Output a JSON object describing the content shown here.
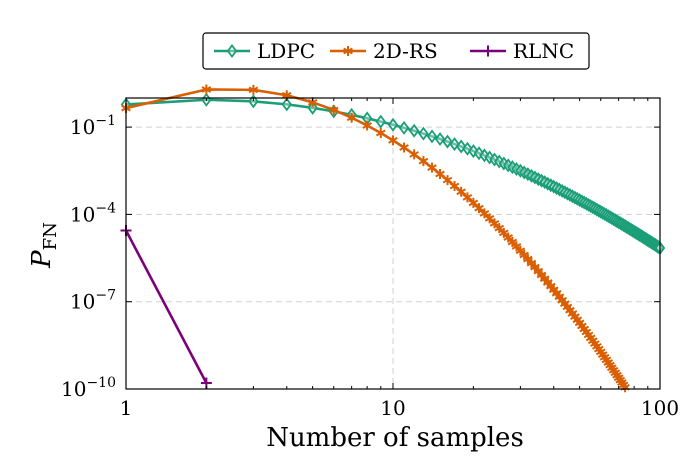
{
  "chart_data": {
    "type": "line",
    "xscale": "log",
    "yscale": "log",
    "xlabel": "Number of samples",
    "ylabel_main": "P",
    "ylabel_sub": "FN",
    "xlim": [
      1,
      100
    ],
    "ylim": [
      1e-10,
      1
    ],
    "xticks": [
      {
        "value": 1,
        "label": "1"
      },
      {
        "value": 10,
        "label": "10"
      },
      {
        "value": 100,
        "label": "100"
      }
    ],
    "yticks": [
      {
        "value": 0.1,
        "base": "10",
        "exp": "−1"
      },
      {
        "value": 0.0001,
        "base": "10",
        "exp": "−4"
      },
      {
        "value": 1e-07,
        "base": "10",
        "exp": "−7"
      },
      {
        "value": 1e-10,
        "base": "10",
        "exp": "−10"
      }
    ],
    "grid": true,
    "legend_position": "top-center",
    "series": [
      {
        "name": "LDPC",
        "color": "#1a9e77",
        "marker": "diamond",
        "model": {
          "kind": "quadratic-log",
          "x_start": 1,
          "x_end": 100,
          "y_at_1": 0.6,
          "y_at_10": 0.12,
          "y_at_100": 7e-06
        },
        "x": [
          1,
          2,
          3,
          4,
          5,
          10,
          20,
          30,
          50,
          70,
          100
        ],
        "y": [
          0.6,
          0.48,
          0.4,
          0.34,
          0.29,
          0.12,
          0.035,
          0.012,
          0.0018,
          0.00025,
          7e-06
        ]
      },
      {
        "name": "2D-RS",
        "color": "#d95f02",
        "marker": "star",
        "model": {
          "kind": "quadratic-log",
          "x_start": 1,
          "x_end": 80,
          "y_at_1": 0.45,
          "y_at_10": 0.035,
          "y_at_100": 1.5e-12
        },
        "x": [
          1,
          2,
          3,
          5,
          10,
          20,
          30,
          50,
          70,
          80
        ],
        "y": [
          0.45,
          0.3,
          0.22,
          0.14,
          0.035,
          0.004,
          0.0004,
          6e-06,
          2e-10,
          9.99e-11
        ]
      },
      {
        "name": "RLNC",
        "color": "#7b007b",
        "marker": "plus",
        "model": {
          "kind": "points"
        },
        "x": [
          1,
          2
        ],
        "y": [
          2.8e-05,
          1.6e-10
        ]
      }
    ]
  }
}
